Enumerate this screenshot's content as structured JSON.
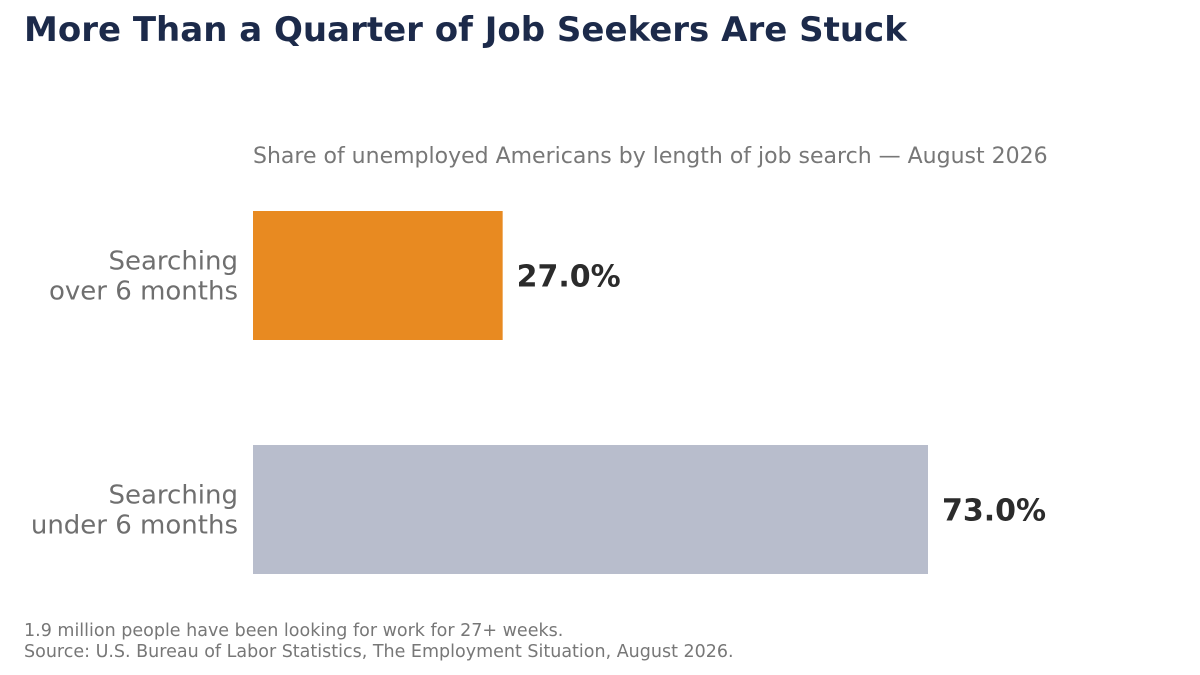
{
  "chart_data": {
    "type": "bar",
    "orientation": "horizontal",
    "title": "More Than a Quarter of Job Seekers Are Stuck",
    "subtitle": "Share of unemployed Americans by length of job search — August 2026",
    "categories": [
      [
        "Searching",
        "over 6 months"
      ],
      [
        "Searching",
        "under 6 months"
      ]
    ],
    "values": [
      27.0,
      73.0
    ],
    "value_labels": [
      "27.0%",
      "73.0%"
    ],
    "colors": [
      "#e88a21",
      "#b8bdcc"
    ],
    "xlim": [
      0,
      100
    ],
    "grid": false,
    "axes_visible": false
  },
  "footer": {
    "note": "1.9 million people have been looking for work for 27+ weeks.",
    "source": "Source: U.S. Bureau of Labor Statistics, The Employment Situation, August 2026."
  }
}
